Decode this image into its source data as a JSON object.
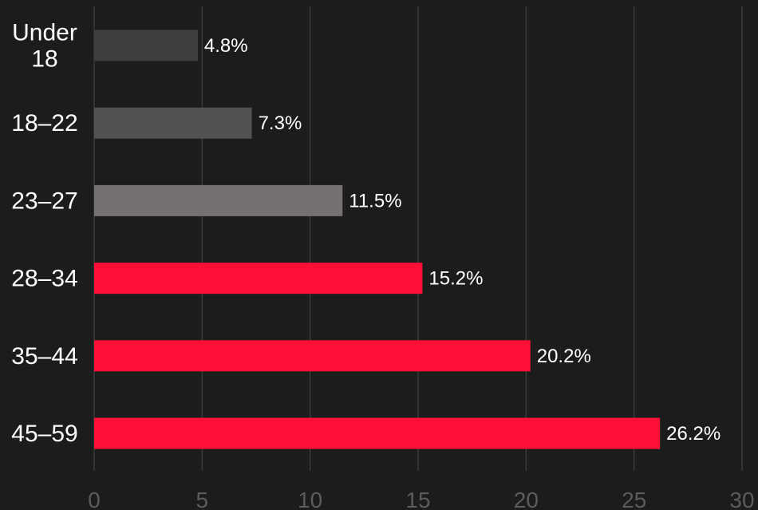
{
  "chart_data": {
    "type": "bar",
    "orientation": "horizontal",
    "categories": [
      [
        "Under",
        "18"
      ],
      [
        "18–22"
      ],
      [
        "23–27"
      ],
      [
        "28–34"
      ],
      [
        "35–44"
      ],
      [
        "45–59"
      ]
    ],
    "values": [
      4.8,
      7.3,
      11.5,
      15.2,
      20.2,
      26.2
    ],
    "value_labels": [
      "4.8%",
      "7.3%",
      "11.5%",
      "15.2%",
      "20.2%",
      "26.2%"
    ],
    "bar_colors": [
      "#3e3e3e",
      "#525252",
      "#767171",
      "#ff0f35",
      "#ff0f35",
      "#ff0f35"
    ],
    "xlim": [
      0,
      30
    ],
    "xticks": [
      0,
      5,
      10,
      15,
      20,
      25,
      30
    ],
    "grid": "vertical",
    "title": "",
    "xlabel": "",
    "ylabel": ""
  },
  "colors": {
    "background": "#1c1c1c",
    "gridline": "#3a3a3a",
    "text": "#ffffff",
    "tick_text": "#5c5c5c"
  }
}
